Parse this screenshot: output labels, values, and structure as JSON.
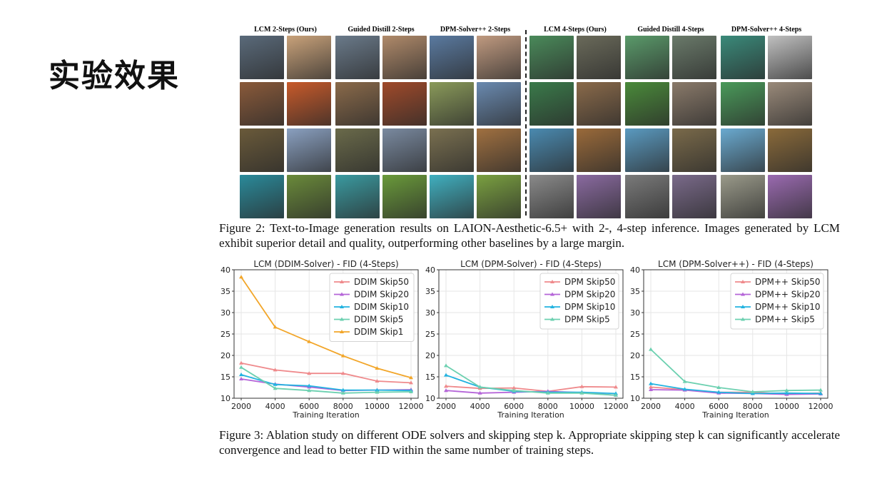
{
  "slide": {
    "title": "实验效果"
  },
  "figure2": {
    "groups": [
      {
        "label": "LCM 2-Steps (Ours)"
      },
      {
        "label": "Guided Distill 2-Steps"
      },
      {
        "label": "DPM-Solver++ 2-Steps"
      },
      {
        "label": "LCM 4-Steps (Ours)"
      },
      {
        "label": "Guided Distill 4-Steps"
      },
      {
        "label": "DPM-Solver++ 4-Steps"
      }
    ],
    "caption": "Figure 2: Text-to-Image generation results on LAION-Aesthetic-6.5+ with 2-, 4-step inference. Images generated by LCM exhibit superior detail and quality, outperforming other baselines by a large margin."
  },
  "figure3": {
    "caption": "Figure 3: Ablation study on different ODE solvers and skipping step k. Appropriate skipping step k can significantly accelerate convergence and lead to better FID within the same number of training steps."
  },
  "colors": {
    "skip50": "#ef8a8c",
    "skip20": "#b565d8",
    "skip10": "#22b3e0",
    "skip5": "#6cd0b0",
    "skip1": "#f2a62a"
  },
  "chart_data": [
    {
      "type": "line",
      "title": "LCM (DDIM-Solver) - FID (4-Steps)",
      "xlabel": "Training Iteration",
      "ylabel": "",
      "x": [
        2000,
        4000,
        6000,
        8000,
        10000,
        12000
      ],
      "ylim": [
        10,
        40
      ],
      "yticks": [
        10,
        15,
        20,
        25,
        30,
        35,
        40
      ],
      "grid": true,
      "legend": "top-right",
      "series": [
        {
          "name": "DDIM Skip50",
          "color": "#ef8a8c",
          "values": [
            18.2,
            16.6,
            15.8,
            15.8,
            14.0,
            13.6
          ]
        },
        {
          "name": "DDIM Skip20",
          "color": "#b565d8",
          "values": [
            14.5,
            13.3,
            12.6,
            11.8,
            11.9,
            12.0
          ]
        },
        {
          "name": "DDIM Skip10",
          "color": "#22b3e0",
          "values": [
            15.5,
            13.2,
            12.9,
            11.9,
            11.9,
            11.8
          ]
        },
        {
          "name": "DDIM Skip5",
          "color": "#6cd0b0",
          "values": [
            17.2,
            12.3,
            11.8,
            11.2,
            11.4,
            11.5
          ]
        },
        {
          "name": "DDIM Skip1",
          "color": "#f2a62a",
          "values": [
            38.3,
            26.6,
            23.2,
            19.9,
            17.0,
            14.8
          ]
        }
      ]
    },
    {
      "type": "line",
      "title": "LCM (DPM-Solver) - FID (4-Steps)",
      "xlabel": "Training Iteration",
      "ylabel": "",
      "x": [
        2000,
        4000,
        6000,
        8000,
        10000,
        12000
      ],
      "ylim": [
        10,
        40
      ],
      "yticks": [
        10,
        15,
        20,
        25,
        30,
        35,
        40
      ],
      "grid": true,
      "legend": "top-right",
      "series": [
        {
          "name": "DPM Skip50",
          "color": "#ef8a8c",
          "values": [
            12.8,
            12.3,
            12.4,
            11.6,
            12.7,
            12.6
          ]
        },
        {
          "name": "DPM Skip20",
          "color": "#b565d8",
          "values": [
            11.8,
            11.2,
            11.4,
            11.6,
            11.3,
            10.7
          ]
        },
        {
          "name": "DPM Skip10",
          "color": "#22b3e0",
          "values": [
            15.4,
            12.6,
            11.6,
            11.4,
            11.4,
            11.1
          ]
        },
        {
          "name": "DPM Skip5",
          "color": "#6cd0b0",
          "values": [
            17.6,
            12.6,
            11.8,
            11.2,
            11.2,
            10.7
          ]
        }
      ]
    },
    {
      "type": "line",
      "title": "LCM (DPM-Solver++) - FID (4-Steps)",
      "xlabel": "Training Iteration",
      "ylabel": "",
      "x": [
        2000,
        4000,
        6000,
        8000,
        10000,
        12000
      ],
      "ylim": [
        10,
        40
      ],
      "yticks": [
        10,
        15,
        20,
        25,
        30,
        35,
        40
      ],
      "grid": true,
      "legend": "top-right",
      "series": [
        {
          "name": "DPM++ Skip50",
          "color": "#ef8a8c",
          "values": [
            12.6,
            12.0,
            11.4,
            11.4,
            11.0,
            11.2
          ]
        },
        {
          "name": "DPM++ Skip20",
          "color": "#b565d8",
          "values": [
            12.0,
            11.9,
            11.2,
            11.1,
            10.9,
            11.0
          ]
        },
        {
          "name": "DPM++ Skip10",
          "color": "#22b3e0",
          "values": [
            13.4,
            12.1,
            11.4,
            11.1,
            11.2,
            11.1
          ]
        },
        {
          "name": "DPM++ Skip5",
          "color": "#6cd0b0",
          "values": [
            21.4,
            13.9,
            12.5,
            11.5,
            11.8,
            11.9
          ]
        }
      ]
    }
  ]
}
